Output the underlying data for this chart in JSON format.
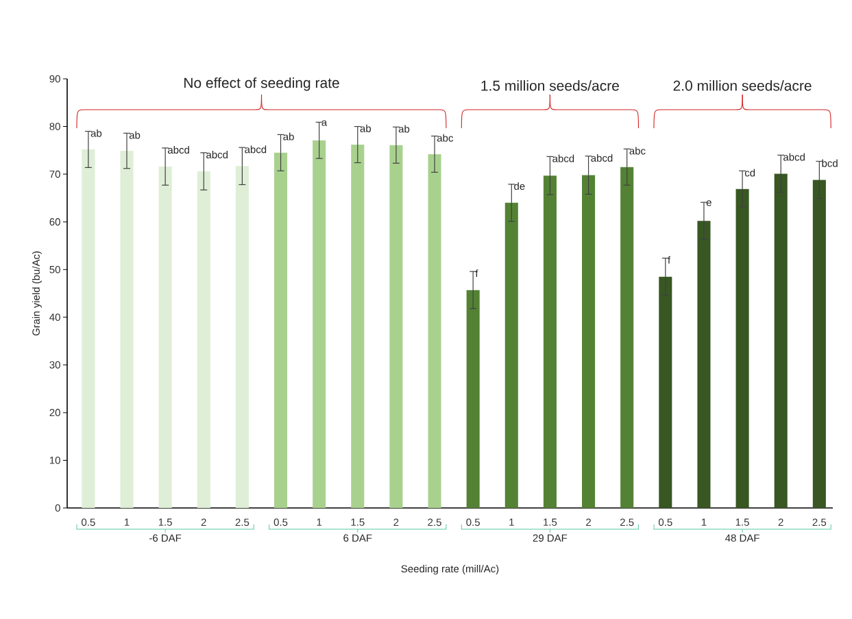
{
  "chart_data": {
    "type": "bar",
    "xlabel": "Seeding rate (mill/Ac)",
    "ylabel": "Grain yield (bu/Ac)",
    "annotations": [
      "No effect of seeding rate",
      "1.5 million seeds/acre",
      "2.0 million seeds/acre",
      "-6 DAF",
      "6 DAF",
      "29 DAF",
      "48 DAF"
    ],
    "categories": [
      "0.5",
      "1",
      "1.5",
      "2",
      "2.5",
      "0.5",
      "1",
      "1.5",
      "2",
      "2.5",
      "0.5",
      "1",
      "1.5",
      "2",
      "2.5",
      "0.5",
      "1",
      "1.5",
      "2",
      "2.5"
    ],
    "values": [
      75.2,
      74.9,
      71.6,
      70.6,
      71.7,
      74.5,
      77.1,
      76.2,
      76.1,
      74.2,
      45.7,
      64.0,
      69.7,
      69.8,
      71.5,
      48.5,
      60.2,
      66.9,
      70.1,
      68.8
    ],
    "errors": [
      3.8,
      3.7,
      3.9,
      3.9,
      3.9,
      3.8,
      3.8,
      3.8,
      3.8,
      3.8,
      3.9,
      3.9,
      4.0,
      4.0,
      3.8,
      3.9,
      3.9,
      3.8,
      3.9,
      3.9
    ],
    "value_labels": [
      "ab",
      "ab",
      "abcd",
      "abcd",
      "abcd",
      "ab",
      "a",
      "ab",
      "ab",
      "abc",
      "f",
      "de",
      "abcd",
      "abcd",
      "abc",
      "f",
      "e",
      "cd",
      "abcd",
      "bcd"
    ],
    "colors": [
      "#dfeed6",
      "#dfeed6",
      "#dfeed6",
      "#dfeed6",
      "#dfeed6",
      "#a9d18e",
      "#a9d18e",
      "#a9d18e",
      "#a9d18e",
      "#a9d18e",
      "#548235",
      "#548235",
      "#548235",
      "#548235",
      "#548235",
      "#385723",
      "#385723",
      "#385723",
      "#385723",
      "#385723"
    ],
    "ylim": [
      0,
      90
    ],
    "yticks": [
      0,
      10,
      20,
      30,
      40,
      50,
      60,
      70,
      80,
      90
    ],
    "grid": false
  }
}
